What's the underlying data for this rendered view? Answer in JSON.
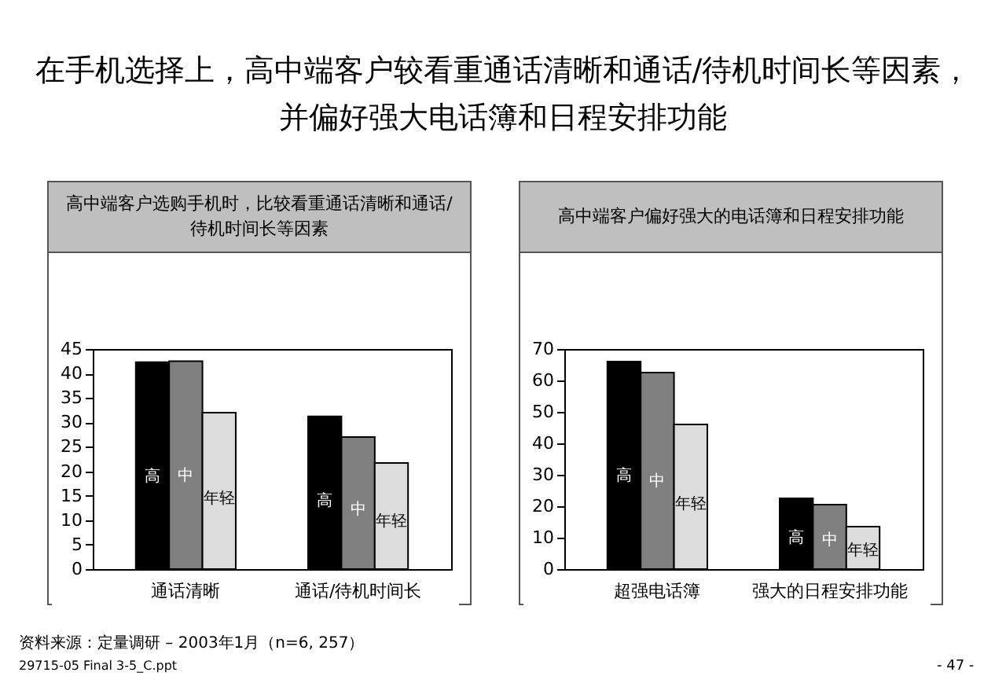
{
  "chart_data": [
    {
      "type": "bar",
      "title": "在手机选择上，高中端客户较看重通话清晰和通话/待机时间长等因素，并偏好强大电话簿和日程安排功能",
      "subtitle": "高中端客户选购手机时，比较看重通话清晰和通话/待机时间长等因素",
      "categories": [
        "通话清晰",
        "通话/待机时间长"
      ],
      "series": [
        {
          "name": "高",
          "color": "#000000",
          "values": [
            42.3,
            31.2
          ]
        },
        {
          "name": "中",
          "color": "#808080",
          "values": [
            42.5,
            27
          ]
        },
        {
          "name": "年轻",
          "color": "#dcdcdc",
          "values": [
            32,
            21.7
          ]
        }
      ],
      "ylim": [
        0,
        45
      ],
      "yticks": [
        0,
        5,
        10,
        15,
        20,
        25,
        30,
        35,
        40,
        45
      ],
      "legend": false,
      "grid": false,
      "annotations": [
        "资料来源：定量调研 – 2003年1月（n=6, 257）",
        "29715-05 Final 3-5_C.ppt",
        "- 47 -"
      ]
    },
    {
      "type": "bar",
      "subtitle": "高中端客户偏好强大的电话簿和日程安排功能",
      "categories": [
        "超强电话簿",
        "强大的日程安排功能"
      ],
      "series": [
        {
          "name": "高",
          "color": "#000000",
          "values": [
            66,
            22.5
          ]
        },
        {
          "name": "中",
          "color": "#808080",
          "values": [
            62.5,
            20.5
          ]
        },
        {
          "name": "年轻",
          "color": "#dcdcdc",
          "values": [
            46,
            13.5
          ]
        }
      ],
      "ylim": [
        0,
        70
      ],
      "yticks": [
        0,
        10,
        20,
        30,
        40,
        50,
        60,
        70
      ],
      "legend": false,
      "grid": false
    }
  ]
}
